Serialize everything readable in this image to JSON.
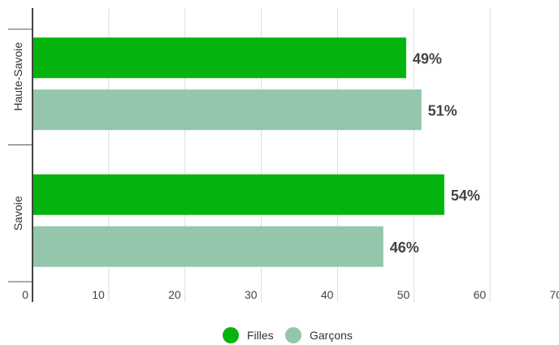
{
  "chart_data": {
    "type": "bar",
    "orientation": "horizontal",
    "categories": [
      "Haute-Savoie",
      "Savoie"
    ],
    "series": [
      {
        "name": "Filles",
        "values": [
          49,
          54
        ],
        "labels": [
          "49%",
          "54%"
        ],
        "color": "#05b30f"
      },
      {
        "name": "Garçons",
        "values": [
          51,
          46
        ],
        "labels": [
          "51%",
          "46%"
        ],
        "color": "#93c6ab"
      }
    ],
    "x_ticks": [
      "0",
      "10",
      "20",
      "30",
      "40",
      "50",
      "60",
      "70"
    ],
    "xlim": [
      0,
      70
    ],
    "grid": true,
    "legend_position": "bottom-center"
  }
}
